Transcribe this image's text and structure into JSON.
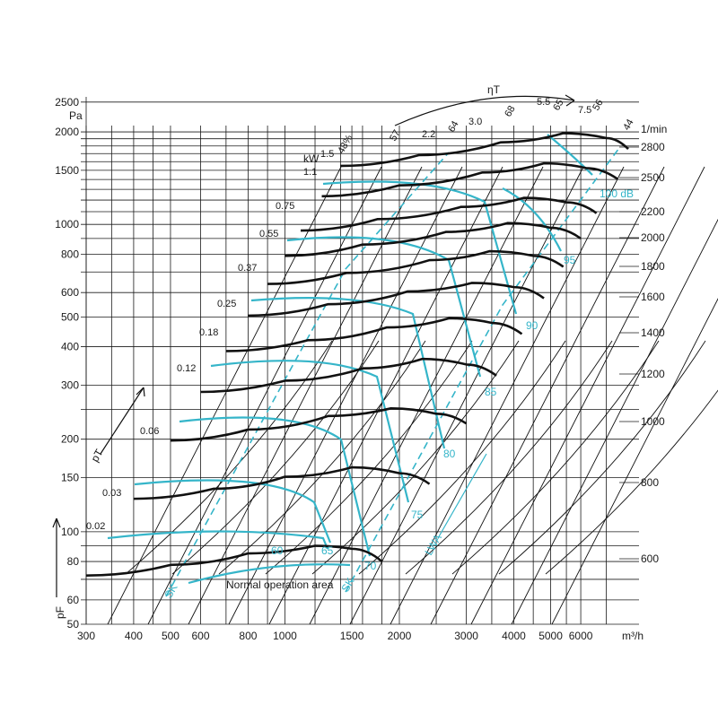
{
  "chart_data": {
    "type": "line",
    "title": "",
    "xlabel": "m³/h",
    "ylabel_left": "pF",
    "ylabel_top": "Pa",
    "ylabel_right": "1/min",
    "pt_label": "pT",
    "eta_label": "ηT",
    "kw_label": "kW",
    "x_scale": "log",
    "y_scale": "log",
    "xlim": [
      300,
      8000
    ],
    "ylim": [
      50,
      2600
    ],
    "x_ticks": [
      300,
      400,
      500,
      600,
      800,
      1000,
      1500,
      2000,
      3000,
      4000,
      5000,
      6000
    ],
    "x_tick_labels": [
      "300",
      "400",
      "500",
      "600",
      "800",
      "1000",
      "1500",
      "2000",
      "3000",
      "4000",
      "5000",
      "6000"
    ],
    "y_ticks": [
      50,
      60,
      80,
      100,
      150,
      200,
      300,
      400,
      500,
      600,
      800,
      1000,
      1500,
      2000,
      2500
    ],
    "y_tick_labels": [
      "50",
      "60",
      "80",
      "100",
      "150",
      "200",
      "300",
      "400",
      "500",
      "600",
      "800",
      "1000",
      "1500",
      "2000",
      "2500"
    ],
    "speed_labels": [
      "2800",
      "2500",
      "2200",
      "2000",
      "1800",
      "1600",
      "1400",
      "1200",
      "1000",
      "800",
      "600"
    ],
    "efficiency_labels": [
      "48%",
      "57",
      "64",
      "68",
      "65",
      "56",
      "44"
    ],
    "power_labels": [
      "0.02",
      "0.03",
      "0.06",
      "0.12",
      "0.18",
      "0.25",
      "0.37",
      "0.55",
      "0.75",
      "1.1",
      "1.5",
      "2.2",
      "3.0",
      "5.5",
      "7.5"
    ],
    "noise_labels": [
      "60",
      "65",
      "70",
      "75",
      "80",
      "85",
      "90",
      "95",
      "100 dB"
    ],
    "dash_labels": [
      "SK",
      "SK"
    ],
    "lwa_label": "LWA",
    "annotation": "Normal operation area",
    "speed_curves": [
      {
        "name": "600",
        "x": [
          300,
          500,
          800,
          1200,
          1500,
          1800
        ],
        "y": [
          72,
          78,
          85,
          90,
          88,
          80
        ]
      },
      {
        "name": "800",
        "x": [
          400,
          650,
          1000,
          1500,
          2000,
          2400
        ],
        "y": [
          128,
          138,
          151,
          162,
          155,
          143
        ]
      },
      {
        "name": "1000",
        "x": [
          500,
          800,
          1300,
          1900,
          2500,
          3000
        ],
        "y": [
          198,
          215,
          238,
          252,
          242,
          225
        ]
      },
      {
        "name": "1200",
        "x": [
          600,
          1000,
          1600,
          2300,
          3000,
          3600
        ],
        "y": [
          285,
          310,
          340,
          365,
          350,
          322
        ]
      },
      {
        "name": "1400",
        "x": [
          700,
          1150,
          1850,
          2700,
          3500,
          4200
        ],
        "y": [
          387,
          420,
          462,
          495,
          478,
          440
        ]
      },
      {
        "name": "1600",
        "x": [
          800,
          1300,
          2100,
          3100,
          4000,
          4800
        ],
        "y": [
          505,
          550,
          605,
          645,
          625,
          575
        ]
      },
      {
        "name": "1800",
        "x": [
          900,
          1450,
          2400,
          3450,
          4500,
          5400
        ],
        "y": [
          640,
          695,
          765,
          818,
          790,
          728
        ]
      },
      {
        "name": "2000",
        "x": [
          1000,
          1600,
          2650,
          3850,
          5000,
          6000
        ],
        "y": [
          790,
          860,
          945,
          1010,
          975,
          900
        ]
      },
      {
        "name": "2200",
        "x": [
          1100,
          1750,
          2900,
          4250,
          5500,
          6600
        ],
        "y": [
          955,
          1040,
          1140,
          1220,
          1180,
          1088
        ]
      },
      {
        "name": "2500",
        "x": [
          1250,
          2000,
          3300,
          4800,
          6200,
          7500
        ],
        "y": [
          1235,
          1340,
          1475,
          1580,
          1525,
          1405
        ]
      },
      {
        "name": "2800",
        "x": [
          1400,
          2250,
          3700,
          5400,
          7000,
          8000
        ],
        "y": [
          1550,
          1680,
          1850,
          1980,
          1910,
          1760
        ]
      }
    ]
  }
}
